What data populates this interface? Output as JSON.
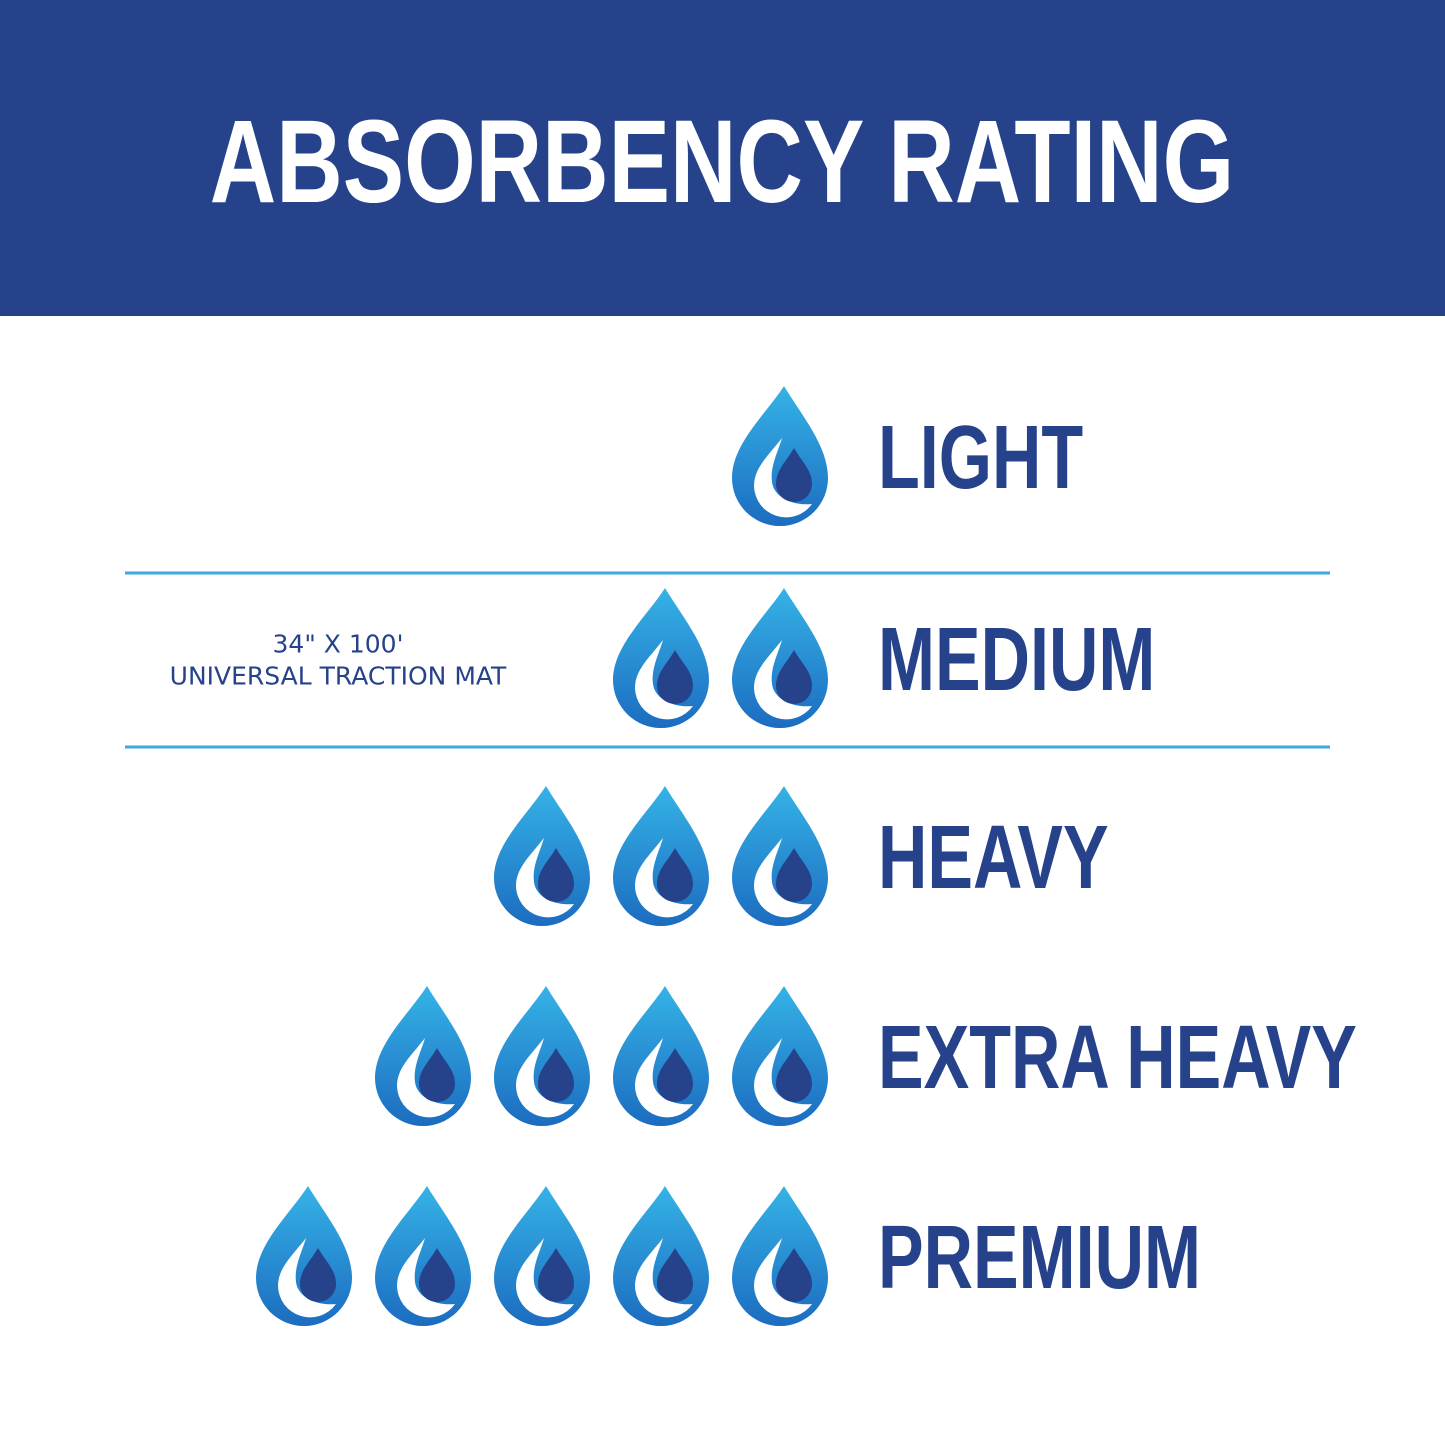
{
  "header": {
    "title": "ABSORBENCY RATING"
  },
  "levels": [
    {
      "label": "LIGHT",
      "drops": 1
    },
    {
      "label": "MEDIUM",
      "drops": 2,
      "note": [
        "34\" X 100'",
        "UNIVERSAL TRACTION MAT"
      ]
    },
    {
      "label": "HEAVY",
      "drops": 3
    },
    {
      "label": "EXTRA HEAVY",
      "drops": 4
    },
    {
      "label": "PREMIUM",
      "drops": 5
    }
  ]
}
